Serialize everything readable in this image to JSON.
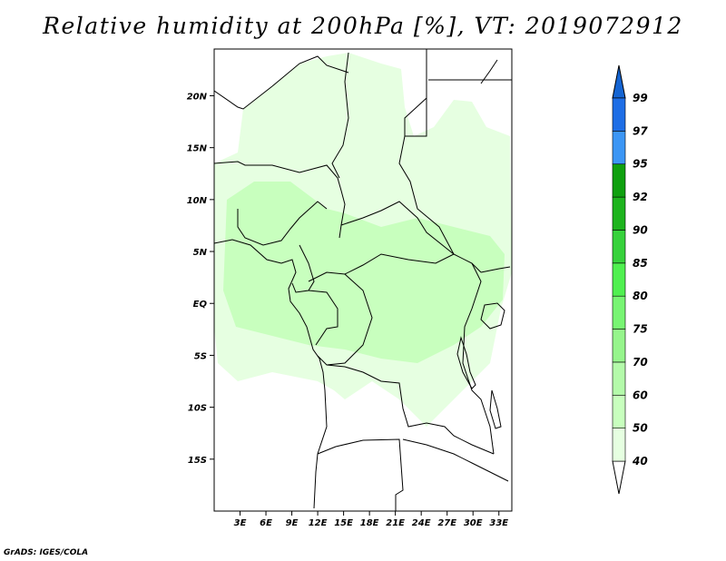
{
  "title": "Relative humidity at 200hPa [%], VT: 2019072912",
  "credit": "GrADS: IGES/COLA",
  "map": {
    "lon_range": [
      0,
      34.5
    ],
    "lat_range": [
      -20,
      24.5
    ],
    "lat_ticks": [
      {
        "value": 20,
        "label": "20N"
      },
      {
        "value": 15,
        "label": "15N"
      },
      {
        "value": 10,
        "label": "10N"
      },
      {
        "value": 5,
        "label": "5N"
      },
      {
        "value": 0,
        "label": "EQ"
      },
      {
        "value": -5,
        "label": "5S"
      },
      {
        "value": -10,
        "label": "10S"
      },
      {
        "value": -15,
        "label": "15S"
      }
    ],
    "lon_ticks": [
      {
        "value": 3,
        "label": "3E"
      },
      {
        "value": 6,
        "label": "6E"
      },
      {
        "value": 9,
        "label": "9E"
      },
      {
        "value": 12,
        "label": "12E"
      },
      {
        "value": 15,
        "label": "15E"
      },
      {
        "value": 18,
        "label": "18E"
      },
      {
        "value": 21,
        "label": "21E"
      },
      {
        "value": 24,
        "label": "24E"
      },
      {
        "value": 27,
        "label": "27E"
      },
      {
        "value": 30,
        "label": "30E"
      },
      {
        "value": 33,
        "label": "33E"
      }
    ],
    "field_colors": [
      "#e6ffe1",
      "#c8ffbe"
    ]
  },
  "colorbar": {
    "levels": [
      {
        "label": "40",
        "color": "#e6ffe1"
      },
      {
        "label": "50",
        "color": "#c8ffbe"
      },
      {
        "label": "60",
        "color": "#b4faaa"
      },
      {
        "label": "70",
        "color": "#96f58c"
      },
      {
        "label": "75",
        "color": "#78f573"
      },
      {
        "label": "80",
        "color": "#50f050"
      },
      {
        "label": "85",
        "color": "#37d23c"
      },
      {
        "label": "90",
        "color": "#1eb41e"
      },
      {
        "label": "92",
        "color": "#0fa00f"
      },
      {
        "label": "95",
        "color": "#3c96f5"
      },
      {
        "label": "97",
        "color": "#1e6ee6"
      },
      {
        "label": "99",
        "color": "#1464d2"
      }
    ],
    "below_color": "#ffffff",
    "above_color": "#1464d2"
  }
}
